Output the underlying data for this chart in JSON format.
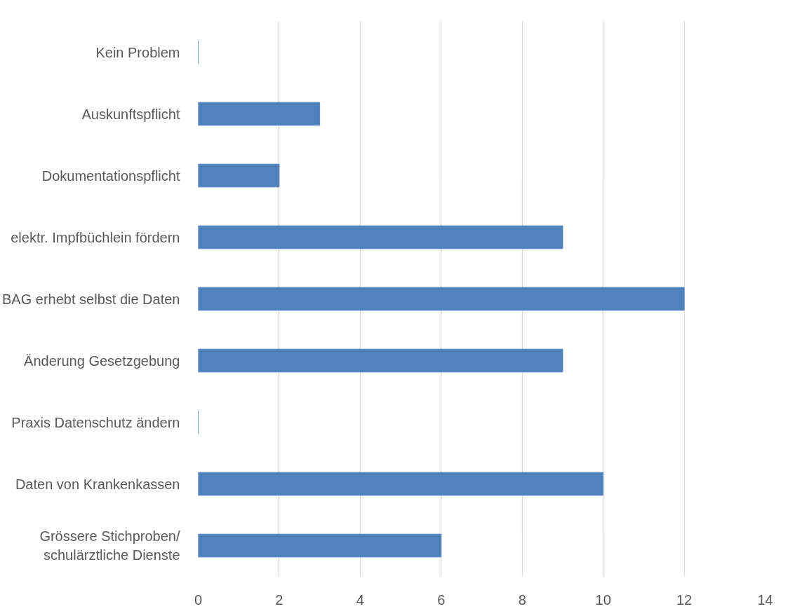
{
  "chart_data": {
    "type": "bar",
    "orientation": "horizontal",
    "categories": [
      "Kein Problem",
      "Auskunftspflicht",
      "Dokumentationspflicht",
      "elektr. Impfbüchlein fördern",
      "BAG erhebt selbst die Daten",
      "Änderung Gesetzgebung",
      "Praxis Datenschutz ändern",
      "Daten von Krankenkassen",
      "Grössere Stichproben/\nschulärztliche Dienste"
    ],
    "values": [
      0,
      3,
      2,
      9,
      12,
      9,
      0,
      10,
      6
    ],
    "color": "#4f81bd",
    "xlim": [
      0,
      14
    ],
    "xticks": [
      0,
      2,
      4,
      6,
      8,
      10,
      12,
      14
    ],
    "grid": "x"
  }
}
